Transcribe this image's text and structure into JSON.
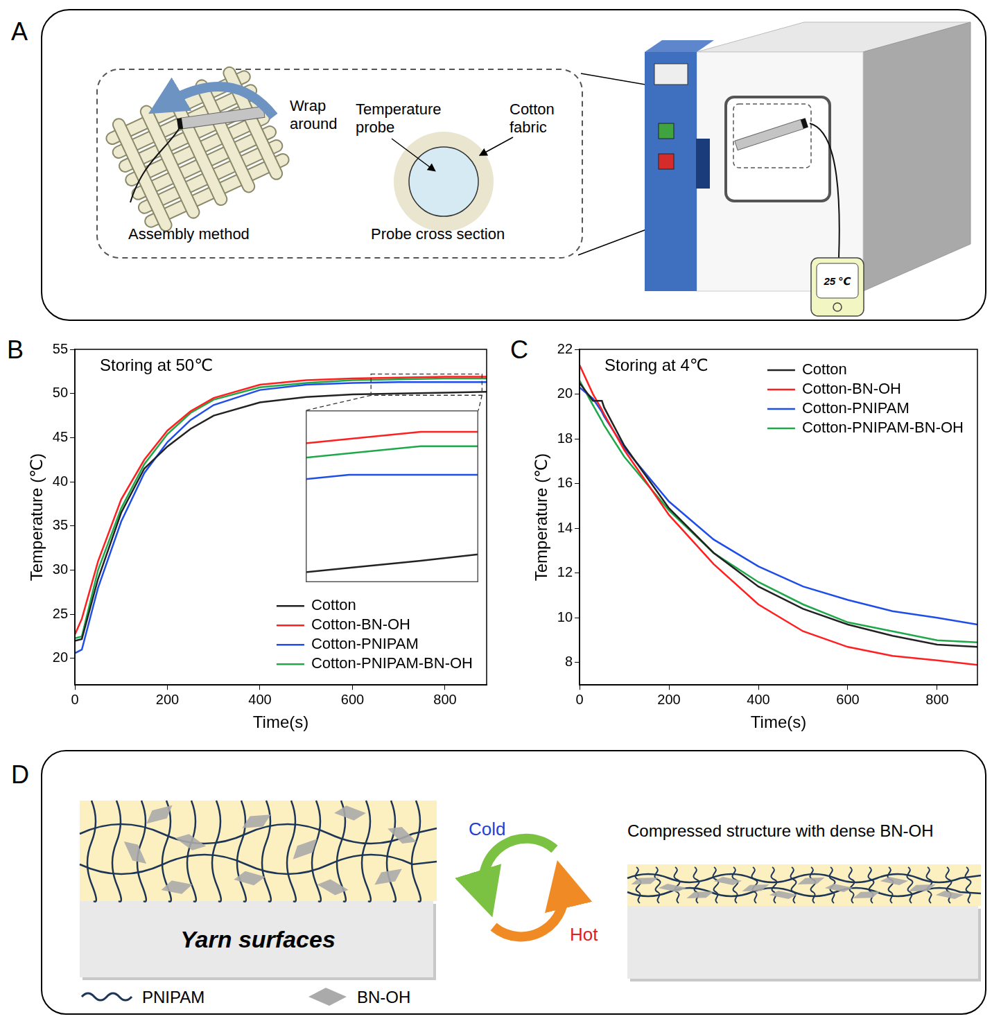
{
  "panel_a": {
    "panel": "A",
    "wrap_around": "Wrap around",
    "assembly_method": "Assembly method",
    "temperature_probe": "Temperature probe",
    "cotton_fabric": "Cotton fabric",
    "probe_cross_section": "Probe cross section",
    "display_reading": "25 ℃"
  },
  "chart_data": [
    {
      "panel": "B",
      "type": "line",
      "annotation": "Storing at 50℃",
      "x_label": "Time(s)",
      "y_label": "Temperature (℃)",
      "x": [
        0,
        15,
        50,
        100,
        150,
        200,
        250,
        300,
        400,
        500,
        600,
        700,
        800,
        890
      ],
      "series": [
        {
          "name": "Cotton",
          "color": "#222222",
          "values": [
            22.0,
            22.2,
            29.0,
            36.5,
            41.5,
            44.0,
            46.0,
            47.5,
            49.0,
            49.6,
            49.9,
            50.0,
            50.1,
            50.2
          ]
        },
        {
          "name": "Cotton-BN-OH",
          "color": "#ff1f1f",
          "values": [
            22.7,
            24.5,
            31.0,
            38.0,
            42.5,
            45.8,
            48.0,
            49.5,
            51.0,
            51.5,
            51.7,
            51.8,
            51.9,
            51.9
          ]
        },
        {
          "name": "Cotton-PNIPAM",
          "color": "#1f4de8",
          "values": [
            20.6,
            21.0,
            28.0,
            35.5,
            41.0,
            44.5,
            47.0,
            48.7,
            50.4,
            51.0,
            51.2,
            51.3,
            51.3,
            51.3
          ]
        },
        {
          "name": "Cotton-PNIPAM-BN-OH",
          "color": "#1fa84a",
          "values": [
            22.3,
            22.5,
            30.0,
            37.0,
            42.0,
            45.4,
            47.8,
            49.3,
            50.7,
            51.2,
            51.5,
            51.6,
            51.7,
            51.7
          ]
        }
      ],
      "xlim": [
        0,
        890
      ],
      "xticks": [
        0,
        200,
        400,
        600,
        800
      ],
      "ylim": [
        17,
        55
      ],
      "yticks": [
        20,
        25,
        30,
        35,
        40,
        45,
        50,
        55
      ],
      "grid": false,
      "legend": "lower right",
      "inset": {
        "xlim": [
          640,
          880
        ],
        "ylim": [
          49.8,
          52.2
        ],
        "tick_labels": false
      }
    },
    {
      "panel": "C",
      "type": "line",
      "annotation": "Storing at 4℃",
      "x_label": "Time(s)",
      "y_label": "Temperature (℃)",
      "x": [
        0,
        30,
        50,
        55,
        100,
        200,
        300,
        400,
        500,
        600,
        700,
        800,
        890
      ],
      "series": [
        {
          "name": "Cotton",
          "color": "#222222",
          "values": [
            20.5,
            19.7,
            19.7,
            19.4,
            17.7,
            14.9,
            12.9,
            11.4,
            10.4,
            9.7,
            9.2,
            8.8,
            8.7
          ]
        },
        {
          "name": "Cotton-BN-OH",
          "color": "#ff1f1f",
          "values": [
            21.3,
            20.0,
            19.3,
            19.1,
            17.5,
            14.6,
            12.4,
            10.6,
            9.4,
            8.7,
            8.3,
            8.1,
            7.9
          ]
        },
        {
          "name": "Cotton-PNIPAM",
          "color": "#1f4de8",
          "values": [
            20.3,
            19.8,
            19.2,
            19.0,
            17.6,
            15.2,
            13.5,
            12.3,
            11.4,
            10.8,
            10.3,
            10.0,
            9.7
          ]
        },
        {
          "name": "Cotton-PNIPAM-BN-OH",
          "color": "#1fa84a",
          "values": [
            20.6,
            19.5,
            18.8,
            18.6,
            17.2,
            14.8,
            12.9,
            11.6,
            10.6,
            9.8,
            9.4,
            9.0,
            8.9
          ]
        }
      ],
      "xlim": [
        0,
        890
      ],
      "xticks": [
        0,
        200,
        400,
        600,
        800
      ],
      "ylim": [
        7,
        22
      ],
      "yticks": [
        8,
        10,
        12,
        14,
        16,
        18,
        20,
        22
      ],
      "grid": false,
      "legend": "upper right"
    }
  ],
  "panel_d": {
    "panel": "D",
    "yarn_surfaces": "Yarn surfaces",
    "cold": "Cold",
    "hot": "Hot",
    "compressed_title": "Compressed structure with dense BN-OH",
    "legend": [
      {
        "name": "PNIPAM"
      },
      {
        "name": "BN-OH"
      }
    ]
  }
}
